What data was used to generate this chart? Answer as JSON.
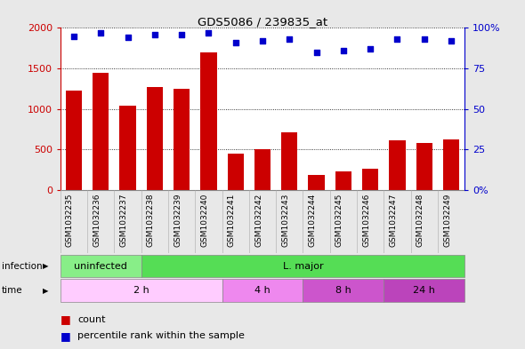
{
  "title": "GDS5086 / 239835_at",
  "samples": [
    "GSM1032235",
    "GSM1032236",
    "GSM1032237",
    "GSM1032238",
    "GSM1032239",
    "GSM1032240",
    "GSM1032241",
    "GSM1032242",
    "GSM1032243",
    "GSM1032244",
    "GSM1032245",
    "GSM1032246",
    "GSM1032247",
    "GSM1032248",
    "GSM1032249"
  ],
  "counts": [
    1230,
    1450,
    1040,
    1270,
    1250,
    1700,
    450,
    510,
    710,
    190,
    230,
    270,
    610,
    580,
    625
  ],
  "percentile_ranks": [
    95,
    97,
    94,
    96,
    96,
    97,
    91,
    92,
    93,
    85,
    86,
    87,
    93,
    93,
    92
  ],
  "bar_color": "#cc0000",
  "dot_color": "#0000cc",
  "ylim_left": [
    0,
    2000
  ],
  "ylim_right": [
    0,
    100
  ],
  "yticks_left": [
    0,
    500,
    1000,
    1500,
    2000
  ],
  "yticks_right": [
    0,
    25,
    50,
    75,
    100
  ],
  "ytick_labels_right": [
    "0%",
    "25",
    "50",
    "75",
    "100%"
  ],
  "infection_labels": [
    {
      "text": "uninfected",
      "start": 0,
      "end": 3,
      "color": "#88ee88"
    },
    {
      "text": "L. major",
      "start": 3,
      "end": 15,
      "color": "#55dd55"
    }
  ],
  "time_labels": [
    {
      "text": "2 h",
      "start": 0,
      "end": 6,
      "color": "#ffccff"
    },
    {
      "text": "4 h",
      "start": 6,
      "end": 9,
      "color": "#ee88ee"
    },
    {
      "text": "8 h",
      "start": 9,
      "end": 12,
      "color": "#cc55cc"
    },
    {
      "text": "24 h",
      "start": 12,
      "end": 15,
      "color": "#bb44bb"
    }
  ],
  "background_color": "#e8e8e8",
  "plot_bg_color": "#ffffff",
  "xtick_bg_color": "#cccccc",
  "grid_color": "#000000",
  "left_axis_color": "#cc0000",
  "right_axis_color": "#0000cc",
  "n_samples": 15
}
